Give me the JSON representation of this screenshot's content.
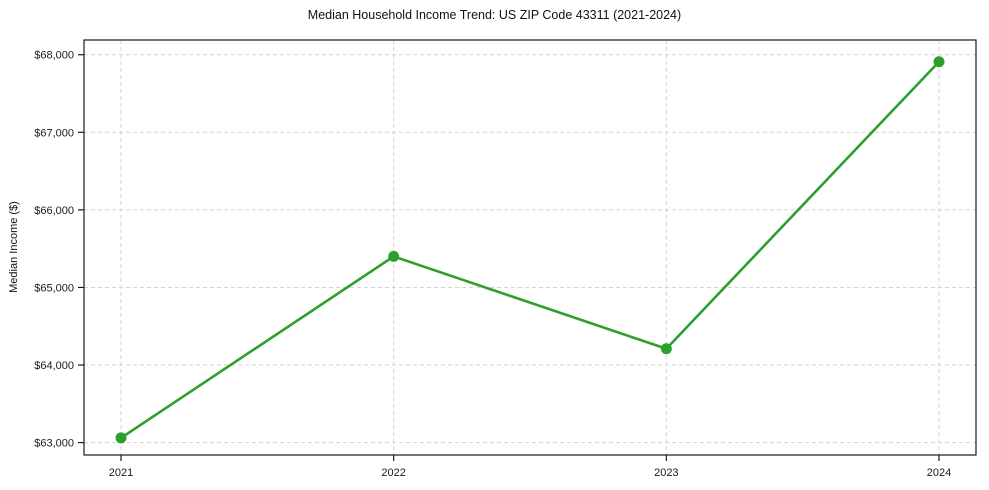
{
  "chart_data": {
    "type": "line",
    "title": "Median Household Income Trend: US ZIP Code 43311 (2021-2024)",
    "xlabel": "",
    "ylabel": "Median Income ($)",
    "categories": [
      "2021",
      "2022",
      "2023",
      "2024"
    ],
    "values": [
      63060,
      65400,
      64210,
      67910
    ],
    "y_ticks": [
      {
        "value": 63000,
        "label": "$63,000"
      },
      {
        "value": 64000,
        "label": "$64,000"
      },
      {
        "value": 65000,
        "label": "$65,000"
      },
      {
        "value": 66000,
        "label": "$66,000"
      },
      {
        "value": 67000,
        "label": "$67,000"
      },
      {
        "value": 68000,
        "label": "$68,000"
      }
    ],
    "ylim": [
      62840,
      68190
    ],
    "grid": true,
    "grid_style": "dashed",
    "legend_position": "none",
    "colors": {
      "line": "#2ca02c",
      "marker": "#2ca02c",
      "grid": "#d4d4d4",
      "axis": "#1a1a1a",
      "text": "#1a1a1a",
      "background": "#ffffff"
    }
  }
}
